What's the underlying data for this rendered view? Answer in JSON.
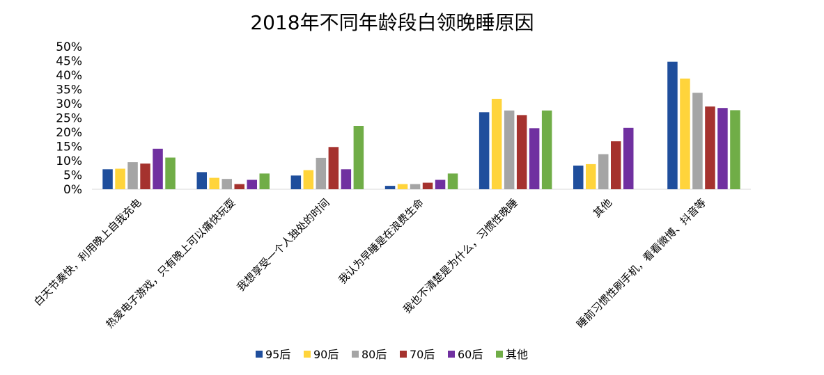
{
  "chart_data": {
    "type": "bar",
    "title": "2018年不同年龄段白领晚睡原因",
    "categories": [
      "白天节奏快，利用晚上自我充电",
      "热爱电子游戏，只有晚上可以痛快玩耍",
      "我想享受一个人独处的时间",
      "我认为早睡是在浪费生命",
      "我也不清楚是为什么，习惯性晚睡",
      "其他",
      "睡前习惯性刷手机，看看微博、抖音等"
    ],
    "yticks": [
      "0%",
      "5%",
      "10%",
      "15%",
      "20%",
      "25%",
      "30%",
      "35%",
      "40%",
      "45%",
      "50%"
    ],
    "ylim": [
      0,
      50
    ],
    "legend_position": "bottom",
    "series": [
      {
        "name": "95后",
        "color": "#1f4e9c",
        "values": [
          7.0,
          6.0,
          4.8,
          1.2,
          27.0,
          8.3,
          44.7
        ]
      },
      {
        "name": "90后",
        "color": "#ffd43b",
        "values": [
          7.2,
          4.0,
          6.7,
          1.8,
          31.7,
          8.8,
          38.8
        ]
      },
      {
        "name": "80后",
        "color": "#a5a5a5",
        "values": [
          9.5,
          3.6,
          11.0,
          1.8,
          27.6,
          12.3,
          33.8
        ]
      },
      {
        "name": "70后",
        "color": "#a5322e",
        "values": [
          9.0,
          1.8,
          14.8,
          2.3,
          26.0,
          16.8,
          29.0
        ]
      },
      {
        "name": "60后",
        "color": "#7030a0",
        "values": [
          14.2,
          3.3,
          7.0,
          3.3,
          21.4,
          21.5,
          28.5
        ]
      },
      {
        "name": "其他",
        "color": "#70ad47",
        "values": [
          11.1,
          5.5,
          22.2,
          5.5,
          27.6,
          0,
          27.7
        ]
      }
    ]
  }
}
